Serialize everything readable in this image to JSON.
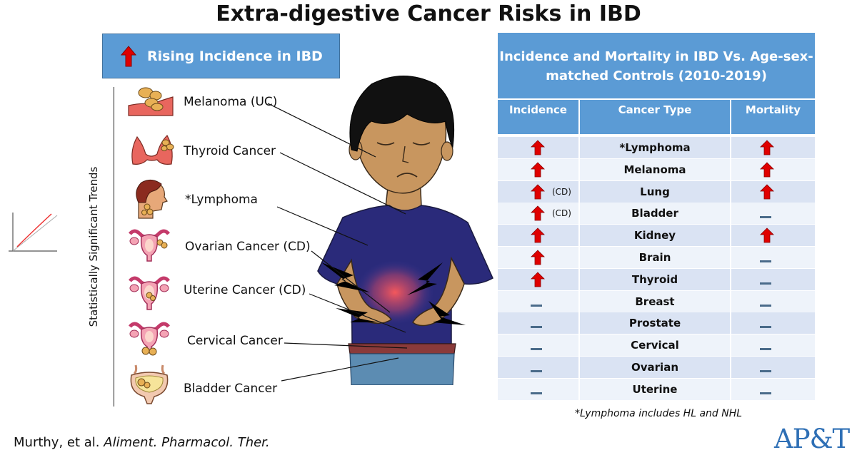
{
  "title": "Extra-digestive Cancer Risks in IBD",
  "left_panel": {
    "header": "Rising Incidence in IBD",
    "axis_label": "Statistically Significant Trends",
    "cancers": [
      {
        "label": "Melanoma (UC)",
        "icon": "skin-melanoma-icon"
      },
      {
        "label": "Thyroid Cancer",
        "icon": "thyroid-icon"
      },
      {
        "label": "*Lymphoma",
        "icon": "head-neck-lymph-icon"
      },
      {
        "label": "Ovarian Cancer (CD)",
        "icon": "ovary-icon"
      },
      {
        "label": "Uterine Cancer (CD)",
        "icon": "uterus-icon"
      },
      {
        "label": "Cervical Cancer",
        "icon": "cervix-icon"
      },
      {
        "label": "Bladder Cancer",
        "icon": "bladder-icon"
      }
    ]
  },
  "table": {
    "title": "Incidence and Mortality in IBD Vs. Age-sex-matched Controls (2010-2019)",
    "columns": [
      "Incidence",
      "Cancer Type",
      "Mortality"
    ],
    "rows": [
      {
        "cancer": "*Lymphoma",
        "incidence": "up",
        "incidence_note": "",
        "mortality": "up"
      },
      {
        "cancer": "Melanoma",
        "incidence": "up",
        "incidence_note": "",
        "mortality": "up"
      },
      {
        "cancer": "Lung",
        "incidence": "up",
        "incidence_note": "(CD)",
        "mortality": "up"
      },
      {
        "cancer": "Bladder",
        "incidence": "up",
        "incidence_note": "(CD)",
        "mortality": "flat"
      },
      {
        "cancer": "Kidney",
        "incidence": "up",
        "incidence_note": "",
        "mortality": "up"
      },
      {
        "cancer": "Brain",
        "incidence": "up",
        "incidence_note": "",
        "mortality": "flat"
      },
      {
        "cancer": "Thyroid",
        "incidence": "up",
        "incidence_note": "",
        "mortality": "flat"
      },
      {
        "cancer": "Breast",
        "incidence": "flat",
        "incidence_note": "",
        "mortality": "flat"
      },
      {
        "cancer": "Prostate",
        "incidence": "flat",
        "incidence_note": "",
        "mortality": "flat"
      },
      {
        "cancer": "Cervical",
        "incidence": "flat",
        "incidence_note": "",
        "mortality": "flat"
      },
      {
        "cancer": "Ovarian",
        "incidence": "flat",
        "incidence_note": "",
        "mortality": "flat"
      },
      {
        "cancer": "Uterine",
        "incidence": "flat",
        "incidence_note": "",
        "mortality": "flat"
      }
    ],
    "footnote": "*Lymphoma includes HL and NHL"
  },
  "citation": {
    "authors": "Murthy, et al.",
    "journal": "Aliment. Pharmacol. Ther."
  },
  "logo": "AP&T",
  "colors": {
    "header_blue": "#5b9bd5",
    "row_dark": "#dae3f3",
    "row_light": "#eef3fa",
    "arrow_red": "#e00000",
    "dash_blue": "#4a6b8a"
  }
}
